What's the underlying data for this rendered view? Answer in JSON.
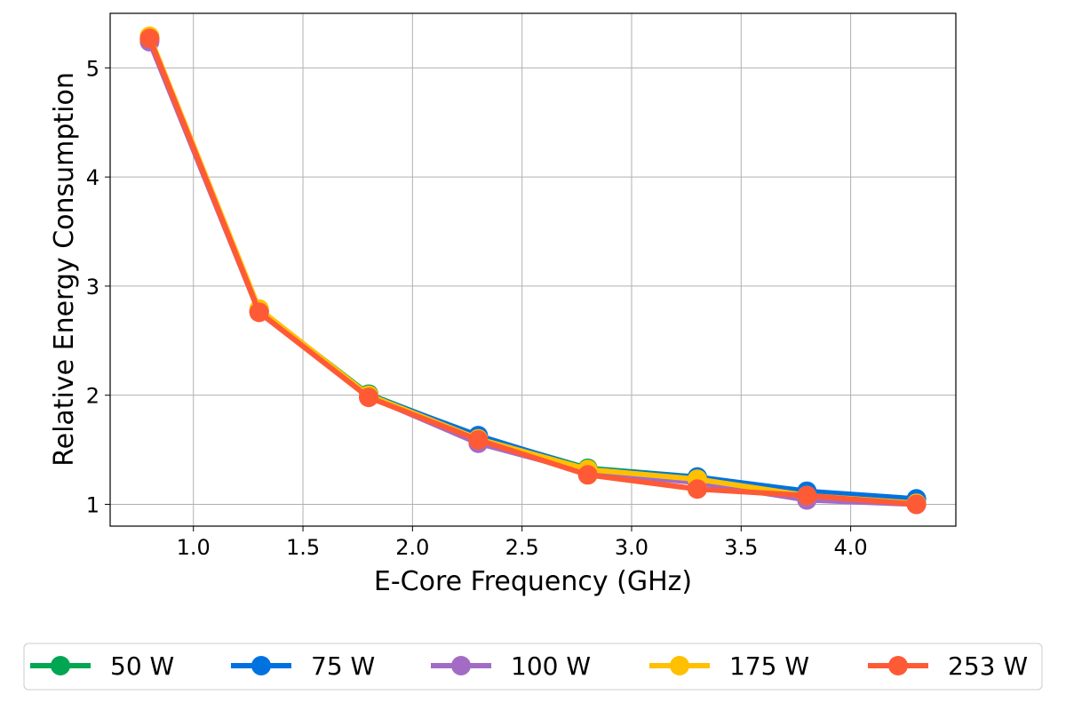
{
  "chart_data": {
    "type": "line",
    "title": "",
    "xlabel": "E-Core Frequency (GHz)",
    "ylabel": "Relative Energy Consumption",
    "xlim": [
      0.62,
      4.48
    ],
    "ylim": [
      0.8,
      5.5
    ],
    "xticks": [
      1.0,
      1.5,
      2.0,
      2.5,
      3.0,
      3.5,
      4.0
    ],
    "xtick_labels": [
      "1.0",
      "1.5",
      "2.0",
      "2.5",
      "3.0",
      "3.5",
      "4.0"
    ],
    "yticks": [
      1,
      2,
      3,
      4,
      5
    ],
    "ytick_labels": [
      "1",
      "2",
      "3",
      "4",
      "5"
    ],
    "grid": true,
    "legend_position": "bottom-center",
    "x": [
      0.8,
      1.3,
      1.8,
      2.3,
      2.8,
      3.3,
      3.8,
      4.3
    ],
    "series": [
      {
        "name": "50 W",
        "color": "#00a651",
        "values": [
          5.27,
          2.78,
          2.01,
          1.62,
          1.33,
          1.25,
          1.11,
          1.04
        ]
      },
      {
        "name": "75 W",
        "color": "#0072e0",
        "values": [
          5.26,
          2.77,
          2.0,
          1.63,
          1.32,
          1.25,
          1.12,
          1.05
        ]
      },
      {
        "name": "100 W",
        "color": "#a36cc4",
        "values": [
          5.24,
          2.76,
          1.99,
          1.56,
          1.29,
          1.2,
          1.04,
          1.0
        ]
      },
      {
        "name": "175 W",
        "color": "#ffc000",
        "values": [
          5.29,
          2.79,
          2.0,
          1.6,
          1.32,
          1.23,
          1.08,
          1.01
        ]
      },
      {
        "name": "253 W",
        "color": "#ff5a36",
        "values": [
          5.27,
          2.76,
          1.98,
          1.59,
          1.27,
          1.14,
          1.08,
          1.0
        ]
      }
    ]
  }
}
